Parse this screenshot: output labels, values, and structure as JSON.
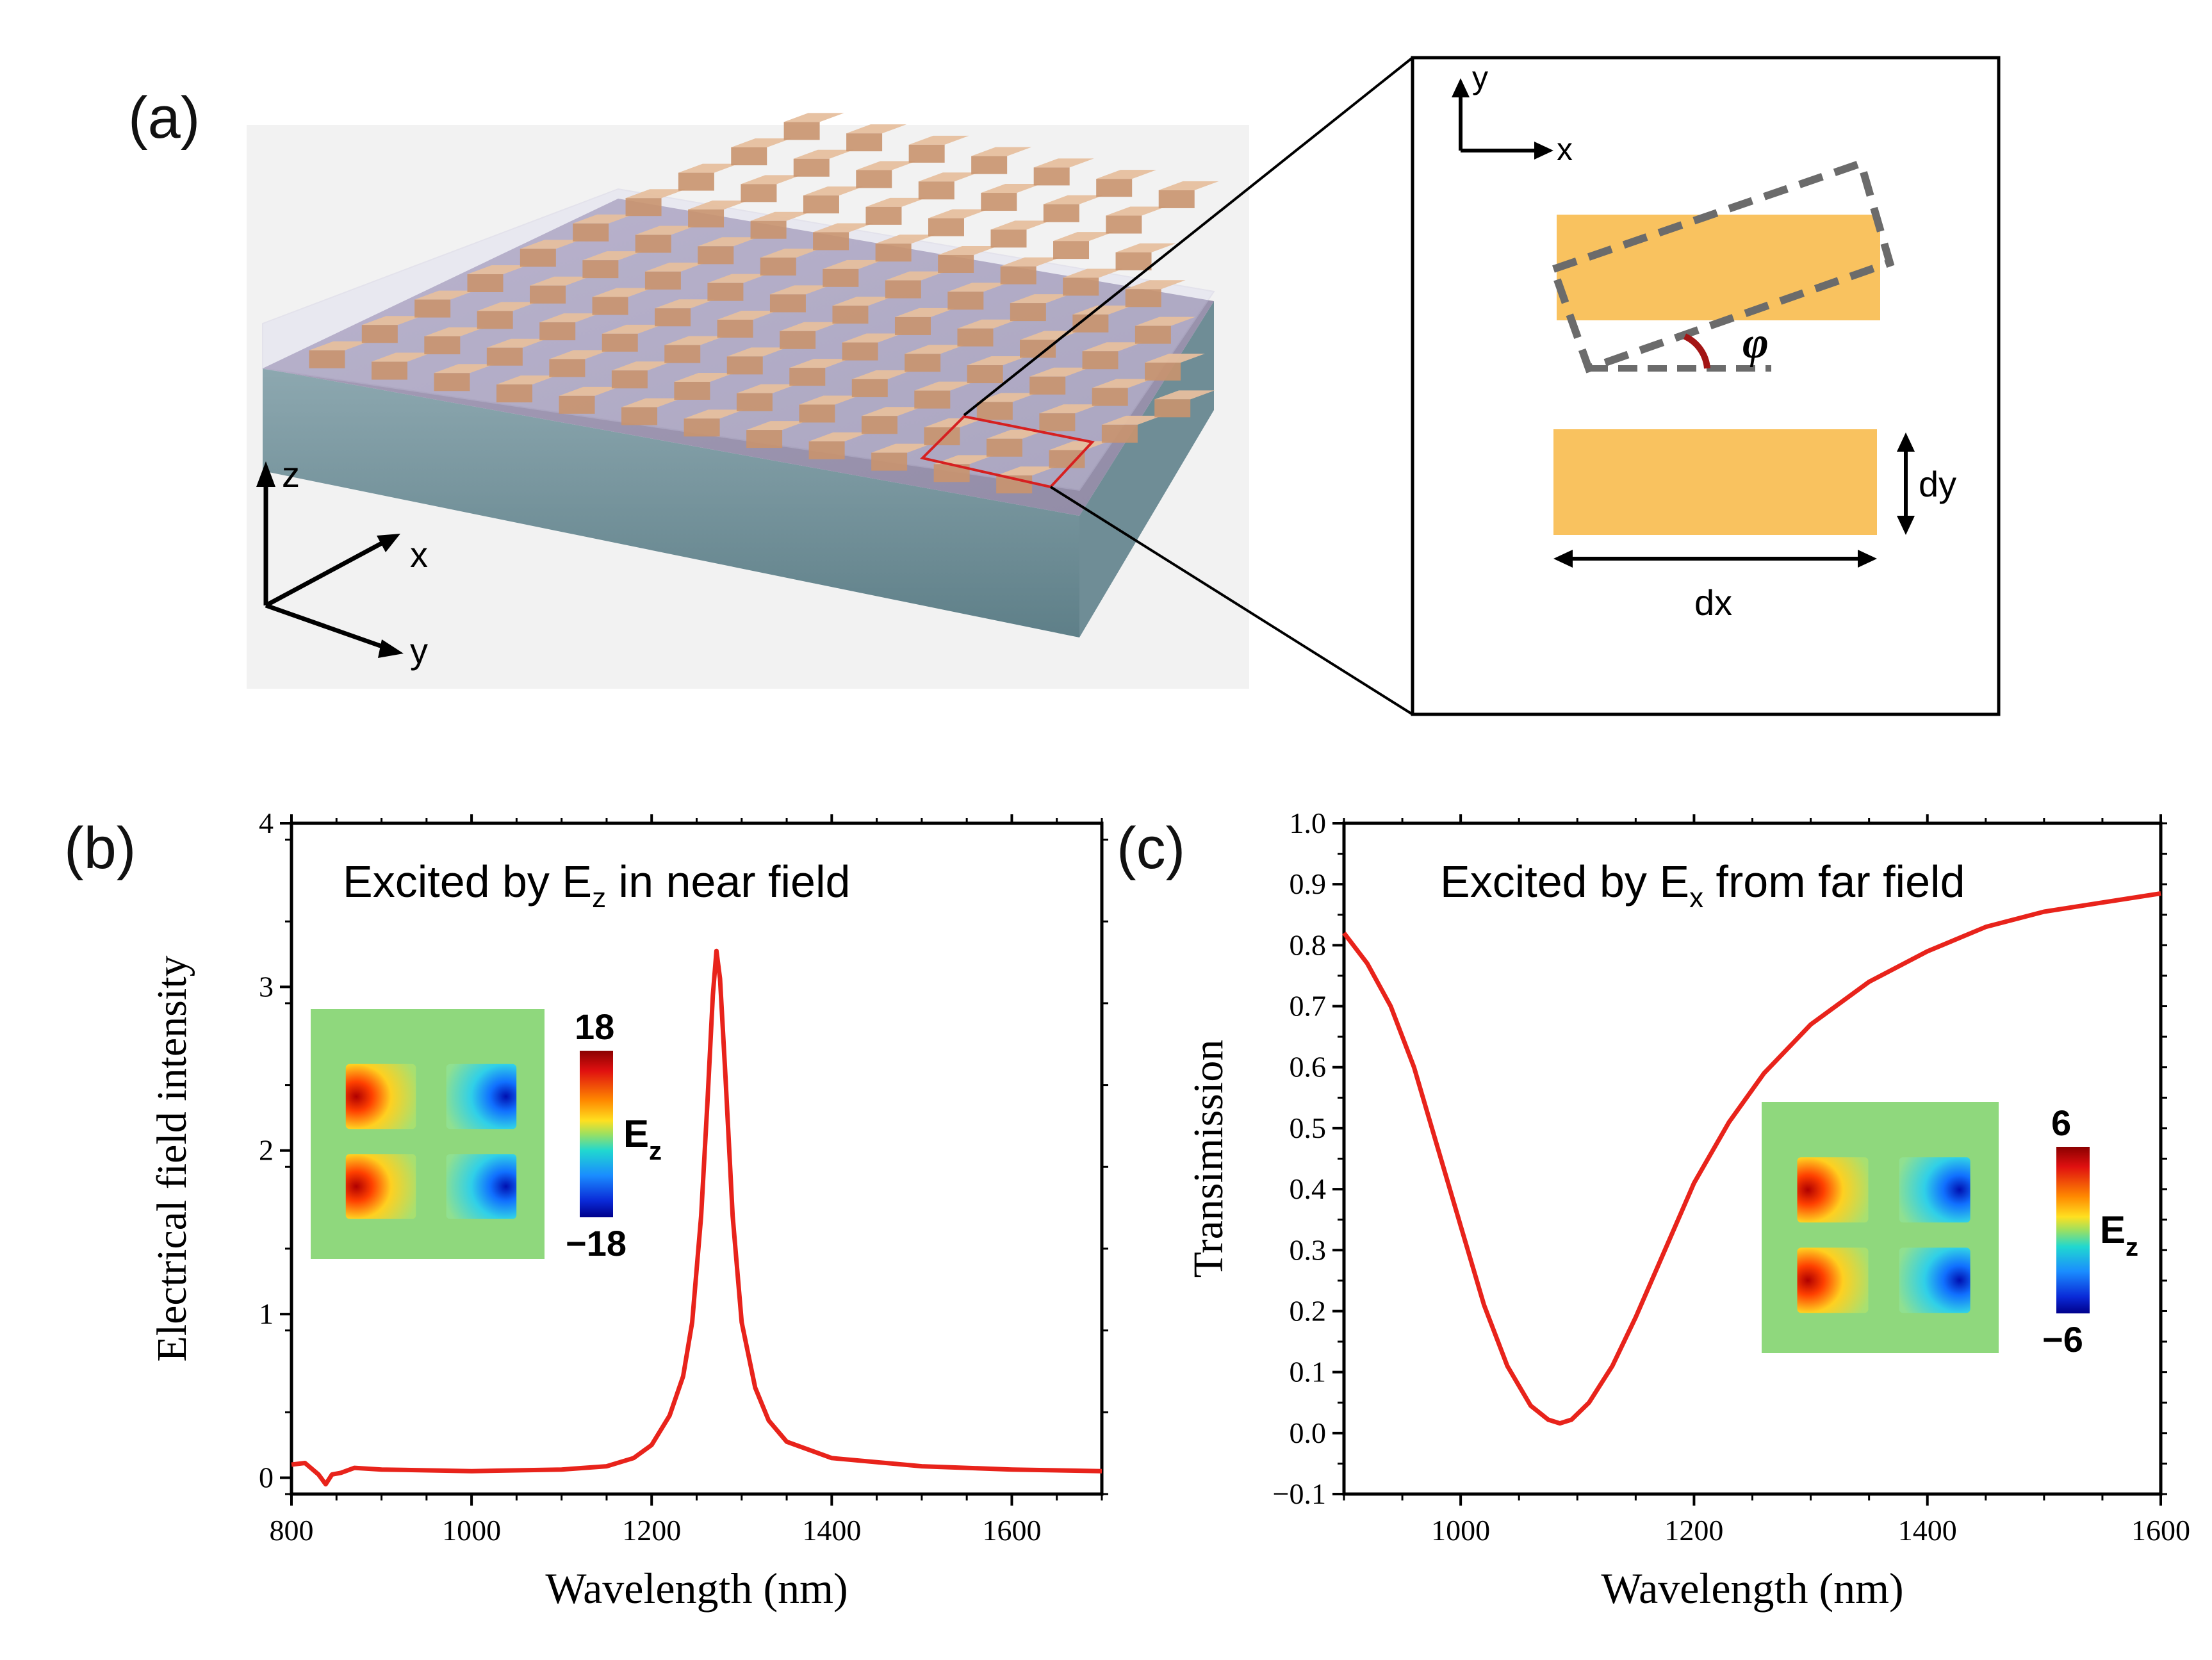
{
  "figure": {
    "panel_a": {
      "label": "(a)",
      "axes_3d": {
        "z": "z",
        "x": "x",
        "y": "y"
      },
      "inset": {
        "axis_y": "y",
        "axis_x": "x",
        "angle_symbol": "φ",
        "dim_y": "dy",
        "dim_x": "dx"
      }
    },
    "colors": {
      "curve": "#e8231b",
      "bar": "#f9c25f",
      "frame": "#000000",
      "zoom_box": "#d62020"
    }
  },
  "chart_data": [
    {
      "id": "b",
      "type": "line",
      "label": "(b)",
      "annotation": "Excited by E",
      "annotation_sub": "z",
      "annotation_tail": " in near field",
      "xlabel": "Wavelength (nm)",
      "ylabel": "Electrical field intensity",
      "xlim": [
        800,
        1700
      ],
      "ylim": [
        -0.1,
        4
      ],
      "xticks": [
        800,
        1000,
        1200,
        1400,
        1600
      ],
      "yticks": [
        0,
        1,
        2,
        3,
        4
      ],
      "ytick_labels": [
        "0",
        "1",
        "2",
        "3",
        "4"
      ],
      "series": [
        {
          "name": "near field",
          "x": [
            800,
            815,
            830,
            838,
            845,
            855,
            870,
            900,
            1000,
            1100,
            1150,
            1180,
            1200,
            1220,
            1235,
            1245,
            1255,
            1262,
            1268,
            1272,
            1276,
            1282,
            1290,
            1300,
            1315,
            1330,
            1350,
            1400,
            1500,
            1600,
            1700
          ],
          "y": [
            0.08,
            0.09,
            0.02,
            -0.04,
            0.02,
            0.03,
            0.06,
            0.05,
            0.04,
            0.05,
            0.07,
            0.12,
            0.2,
            0.38,
            0.62,
            0.95,
            1.6,
            2.3,
            2.95,
            3.22,
            3.05,
            2.45,
            1.6,
            0.95,
            0.55,
            0.35,
            0.22,
            0.12,
            0.07,
            0.05,
            0.04
          ]
        }
      ],
      "inset": {
        "colorbar_max": "18",
        "colorbar_min": "−18",
        "colorbar_label": "E",
        "colorbar_sub": "z"
      }
    },
    {
      "id": "c",
      "type": "line",
      "label": "(c)",
      "annotation": "Excited by E",
      "annotation_sub": "x",
      "annotation_tail": " from far field",
      "xlabel": "Wavelength (nm)",
      "ylabel": "Transimission",
      "xlim": [
        900,
        1600
      ],
      "ylim": [
        -0.1,
        1.0
      ],
      "xticks": [
        1000,
        1200,
        1400,
        1600
      ],
      "yticks": [
        -0.1,
        0.0,
        0.1,
        0.2,
        0.3,
        0.4,
        0.5,
        0.6,
        0.7,
        0.8,
        0.9,
        1.0
      ],
      "ytick_labels": [
        "−0.1",
        "0.0",
        "0.1",
        "0.2",
        "0.3",
        "0.4",
        "0.5",
        "0.6",
        "0.7",
        "0.8",
        "0.9",
        "1.0"
      ],
      "series": [
        {
          "name": "transmission",
          "x": [
            900,
            920,
            940,
            960,
            980,
            1000,
            1020,
            1040,
            1060,
            1075,
            1085,
            1095,
            1110,
            1130,
            1150,
            1175,
            1200,
            1230,
            1260,
            1300,
            1350,
            1400,
            1450,
            1500,
            1550,
            1600
          ],
          "y": [
            0.82,
            0.77,
            0.7,
            0.6,
            0.47,
            0.34,
            0.21,
            0.11,
            0.045,
            0.022,
            0.016,
            0.022,
            0.05,
            0.11,
            0.19,
            0.3,
            0.41,
            0.51,
            0.59,
            0.67,
            0.74,
            0.79,
            0.83,
            0.855,
            0.87,
            0.885
          ]
        }
      ],
      "inset": {
        "colorbar_max": "6",
        "colorbar_min": "−6",
        "colorbar_label": "E",
        "colorbar_sub": "z"
      }
    }
  ]
}
